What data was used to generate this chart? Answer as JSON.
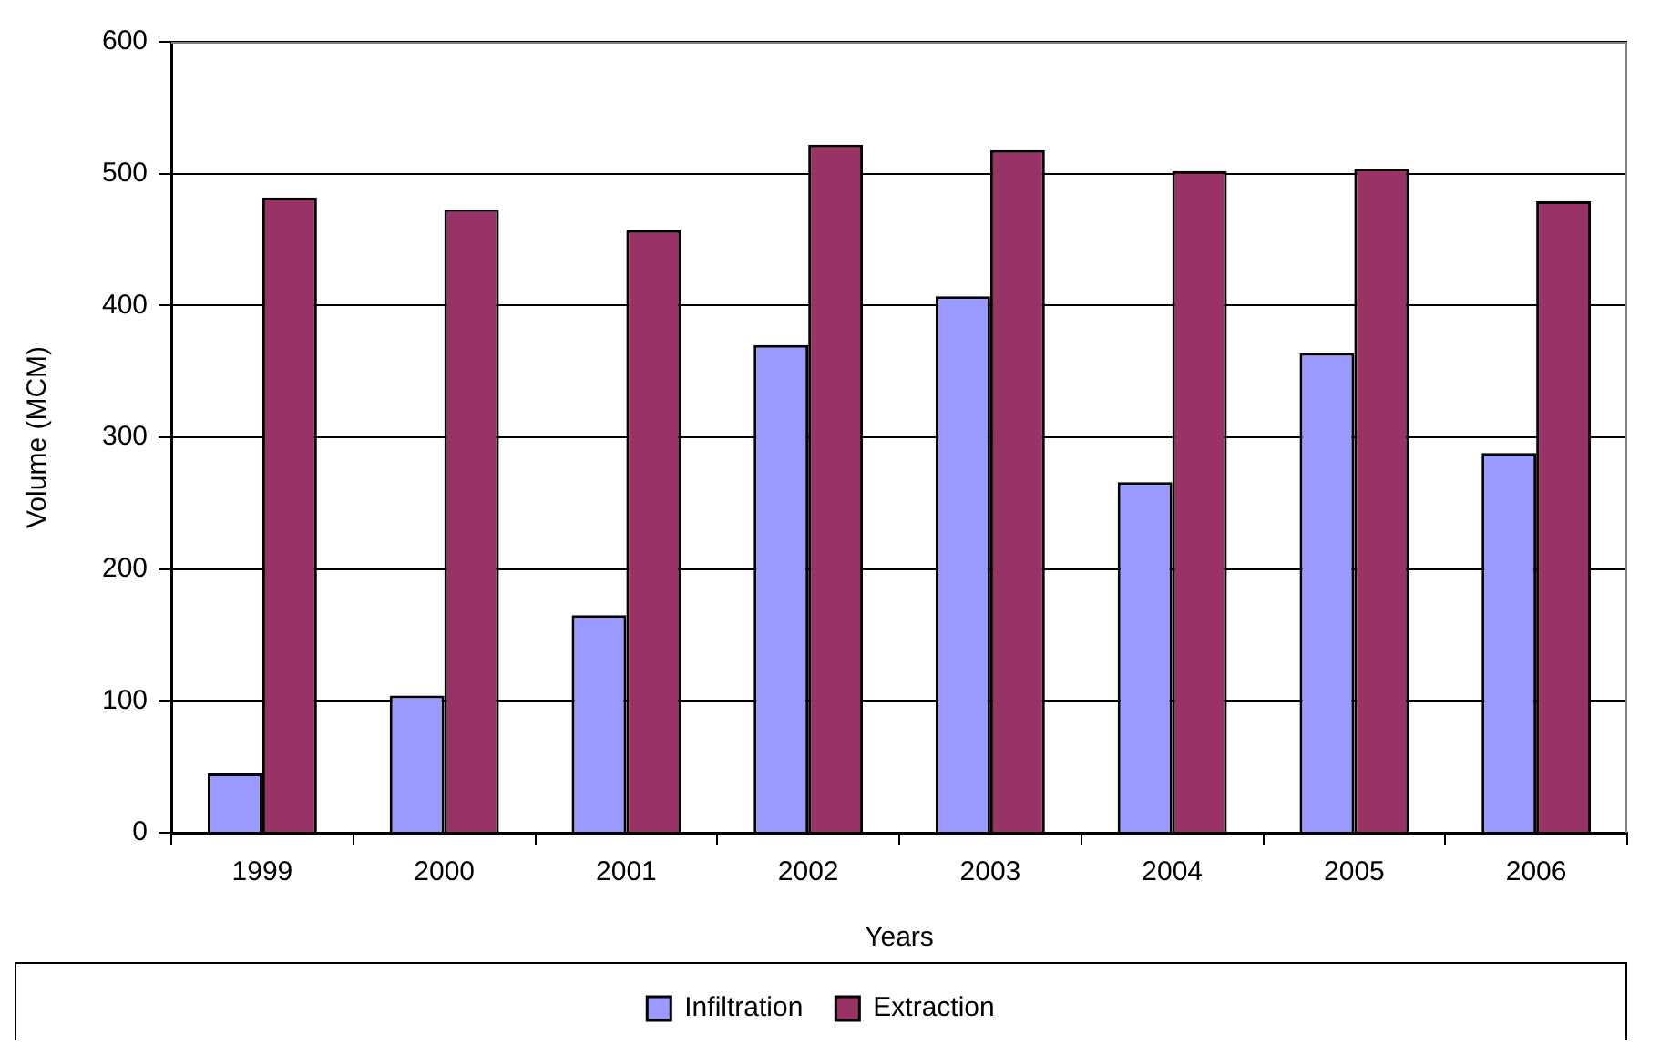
{
  "chart_data": {
    "type": "bar",
    "xlabel": "Years",
    "ylabel": "Volume (MCM)",
    "categories": [
      "1999",
      "2000",
      "2001",
      "2002",
      "2003",
      "2004",
      "2005",
      "2006"
    ],
    "series": [
      {
        "name": "Infiltration",
        "color": "#9999ff",
        "values": [
          45,
          104,
          165,
          370,
          407,
          266,
          364,
          288
        ]
      },
      {
        "name": "Extraction",
        "color": "#993366",
        "values": [
          482,
          473,
          457,
          522,
          518,
          502,
          504,
          479
        ]
      }
    ],
    "ylim": [
      0,
      600
    ],
    "yticks": [
      0,
      100,
      200,
      300,
      400,
      500,
      600
    ],
    "grid": "y",
    "legend": "bottom"
  }
}
